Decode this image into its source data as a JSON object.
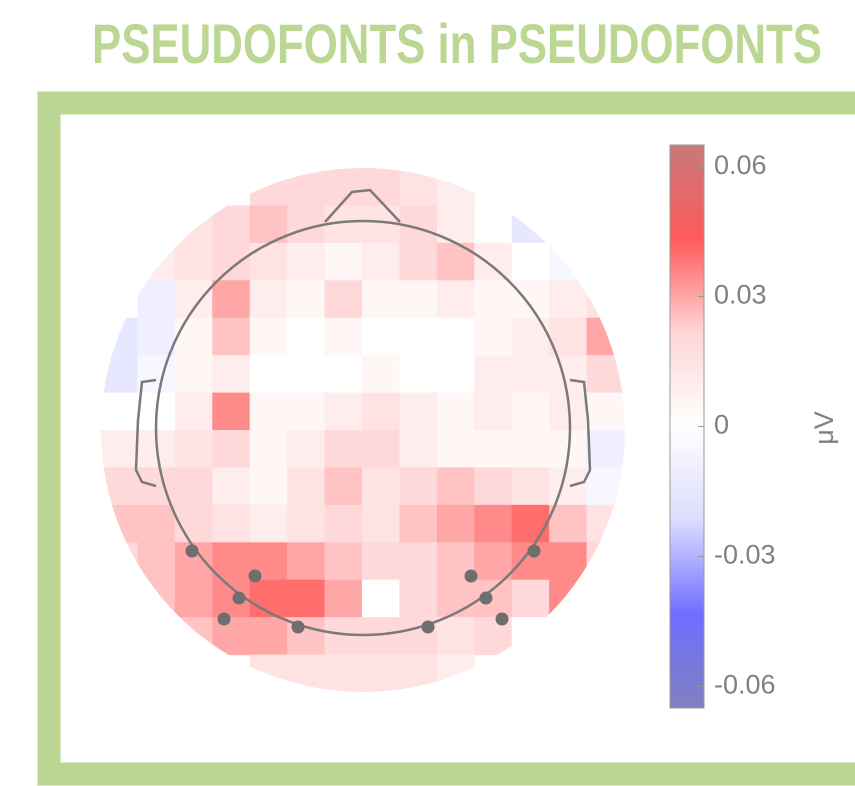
{
  "chart_data": {
    "type": "topomap",
    "title": "PSEUDOFONTS in PSEUDOFONTS",
    "colorbar_label": "μV",
    "clim": [
      -0.065,
      0.065
    ],
    "cticks": [
      0.06,
      0.03,
      0,
      -0.03,
      -0.06
    ],
    "colormap": [
      "#8080c0",
      "#6e6eff",
      "#dcdcff",
      "#ffffff",
      "#ffd6d6",
      "#ff5a5a",
      "#c77a7a"
    ],
    "values": [
      [
        null,
        null,
        null,
        null,
        0.02,
        0.02,
        0.02,
        0.02,
        0.015,
        0.01,
        null,
        null,
        null,
        null
      ],
      [
        null,
        null,
        0.015,
        0.02,
        0.025,
        0.02,
        0.015,
        0.015,
        0.02,
        0.01,
        0,
        -0.015,
        null,
        null
      ],
      [
        null,
        0.01,
        0.015,
        0.02,
        0.015,
        0.01,
        0.005,
        0.01,
        0.02,
        0.025,
        0.01,
        0,
        -0.005,
        null
      ],
      [
        null,
        -0.01,
        0.01,
        0.03,
        0.01,
        0.005,
        0.02,
        0.005,
        0.005,
        0.01,
        0.005,
        0.005,
        0.01,
        0.015
      ],
      [
        -0.015,
        -0.01,
        0.005,
        0.025,
        0.005,
        0,
        0.005,
        0,
        0,
        0,
        0.005,
        0.01,
        0.015,
        0.03
      ],
      [
        -0.015,
        -0.005,
        0.005,
        0.01,
        0,
        0,
        0,
        0.005,
        0,
        0,
        0.01,
        0.01,
        0.01,
        0.02
      ],
      [
        0,
        0,
        0.01,
        0.035,
        0.005,
        0.005,
        0.01,
        0.015,
        0.01,
        0.005,
        0.01,
        0.005,
        0.01,
        0.005
      ],
      [
        0.01,
        0.01,
        0.015,
        0.02,
        0.005,
        0.01,
        0.02,
        0.02,
        0.01,
        0.005,
        0.005,
        0.005,
        0.005,
        -0.01
      ],
      [
        0.02,
        0.02,
        0.02,
        0.01,
        0.005,
        0.015,
        0.025,
        0.015,
        0.02,
        0.025,
        0.02,
        0.015,
        0.01,
        -0.005
      ],
      [
        0.025,
        0.025,
        0.02,
        0.015,
        0.01,
        0.015,
        0.02,
        0.015,
        0.025,
        0.03,
        0.035,
        0.04,
        0.025,
        0.015
      ],
      [
        0.02,
        0.025,
        0.03,
        0.035,
        0.035,
        0.03,
        0.025,
        0.02,
        0.02,
        0.025,
        0.03,
        0.035,
        0.035,
        0.02
      ],
      [
        null,
        0.025,
        0.03,
        0.035,
        0.04,
        0.04,
        0.03,
        0,
        0.02,
        0.025,
        0.025,
        0.02,
        0.035,
        null
      ],
      [
        null,
        null,
        0.025,
        0.03,
        0.03,
        0.025,
        0.02,
        0.02,
        0.02,
        0.015,
        0.02,
        0,
        0.02,
        null
      ],
      [
        null,
        null,
        null,
        null,
        0.015,
        0.015,
        0.015,
        0.015,
        0.015,
        0.01,
        null,
        null,
        null,
        null
      ]
    ]
  }
}
